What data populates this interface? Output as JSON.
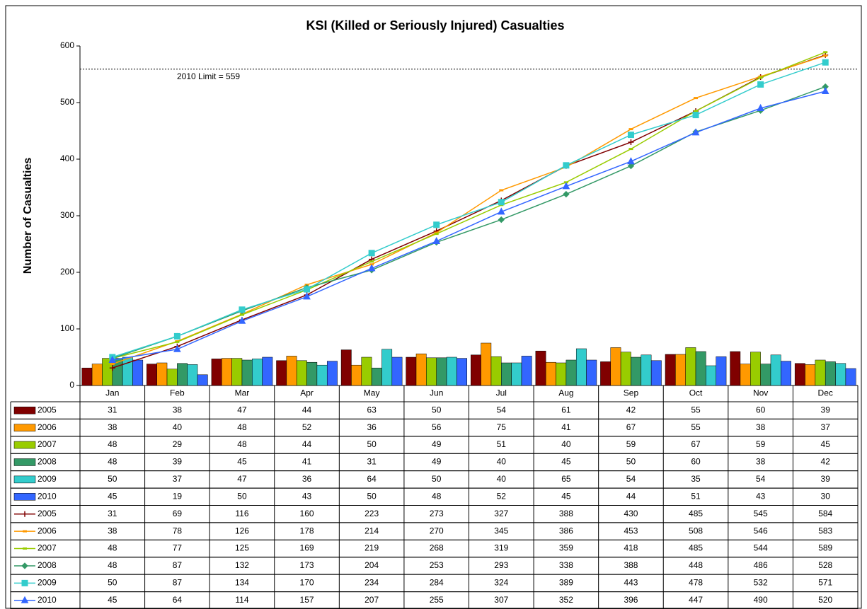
{
  "chart_data": {
    "type": "combo",
    "title": "KSI (Killed or Seriously Injured) Casualties",
    "y_label": "Number of Casualties",
    "categories": [
      "Jan",
      "Feb",
      "Mar",
      "Apr",
      "May",
      "Jun",
      "Jul",
      "Aug",
      "Sep",
      "Oct",
      "Nov",
      "Dec"
    ],
    "ylim": [
      0,
      600
    ],
    "yticks": [
      0,
      100,
      200,
      300,
      400,
      500,
      600
    ],
    "grid": false,
    "limit": {
      "value": 559,
      "label": "2010 Limit = 559"
    },
    "series": [
      {
        "name": "2005",
        "type": "bar",
        "color": "#800000",
        "values": [
          31,
          38,
          47,
          44,
          63,
          50,
          54,
          61,
          42,
          55,
          60,
          39
        ]
      },
      {
        "name": "2006",
        "type": "bar",
        "color": "#FF9900",
        "values": [
          38,
          40,
          48,
          52,
          36,
          56,
          75,
          41,
          67,
          55,
          38,
          37
        ]
      },
      {
        "name": "2007",
        "type": "bar",
        "color": "#99CC00",
        "values": [
          48,
          29,
          48,
          44,
          50,
          49,
          51,
          40,
          59,
          67,
          59,
          45
        ]
      },
      {
        "name": "2008",
        "type": "bar",
        "color": "#339966",
        "values": [
          48,
          39,
          45,
          41,
          31,
          49,
          40,
          45,
          50,
          60,
          38,
          42
        ]
      },
      {
        "name": "2009",
        "type": "bar",
        "color": "#33CCCC",
        "values": [
          50,
          37,
          47,
          36,
          64,
          50,
          40,
          65,
          54,
          35,
          54,
          39
        ]
      },
      {
        "name": "2010",
        "type": "bar",
        "color": "#3366FF",
        "values": [
          45,
          19,
          50,
          43,
          50,
          48,
          52,
          45,
          44,
          51,
          43,
          30
        ]
      },
      {
        "name": "2005",
        "type": "line",
        "marker": "plus",
        "color": "#800000",
        "values": [
          31,
          69,
          116,
          160,
          223,
          273,
          327,
          388,
          430,
          485,
          545,
          584
        ]
      },
      {
        "name": "2006",
        "type": "line",
        "marker": "dash",
        "color": "#FF9900",
        "values": [
          38,
          78,
          126,
          178,
          214,
          270,
          345,
          386,
          453,
          508,
          546,
          583
        ]
      },
      {
        "name": "2007",
        "type": "line",
        "marker": "dash",
        "color": "#99CC00",
        "values": [
          48,
          77,
          125,
          169,
          219,
          268,
          319,
          359,
          418,
          485,
          544,
          589
        ]
      },
      {
        "name": "2008",
        "type": "line",
        "marker": "diamond",
        "color": "#339966",
        "values": [
          48,
          87,
          132,
          173,
          204,
          253,
          293,
          338,
          388,
          448,
          486,
          528
        ]
      },
      {
        "name": "2009",
        "type": "line",
        "marker": "square",
        "color": "#33CCCC",
        "values": [
          50,
          87,
          134,
          170,
          234,
          284,
          324,
          389,
          443,
          478,
          532,
          571
        ]
      },
      {
        "name": "2010",
        "type": "line",
        "marker": "triangle",
        "color": "#3366FF",
        "values": [
          45,
          64,
          114,
          157,
          207,
          255,
          307,
          352,
          396,
          447,
          490,
          520
        ]
      }
    ]
  }
}
